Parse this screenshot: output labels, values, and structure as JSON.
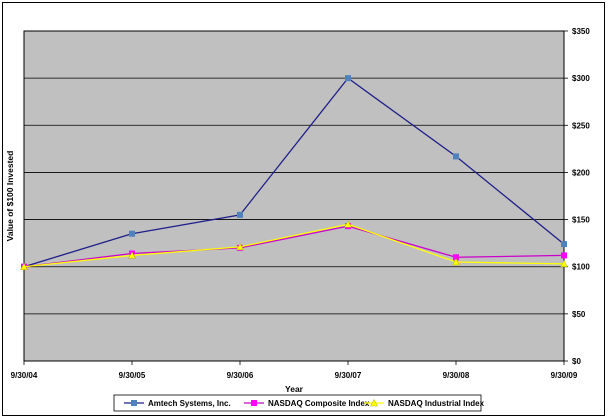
{
  "chart_data": {
    "type": "line",
    "title": "",
    "xlabel": "Year",
    "ylabel": "Value of $100 Invested",
    "categories": [
      "9/30/04",
      "9/30/05",
      "9/30/06",
      "9/30/07",
      "9/30/08",
      "9/30/09"
    ],
    "y_tick_labels": [
      "$0",
      "$50",
      "$100",
      "$150",
      "$200",
      "$250",
      "$300",
      "$350"
    ],
    "ylim": [
      0,
      350
    ],
    "y_axis_side": "right",
    "grid": true,
    "plot_background": "#c0c0c0",
    "legend_position": "bottom",
    "series": [
      {
        "name": "Amtech Systems, Inc.",
        "values": [
          100,
          135,
          155,
          300,
          217,
          124
        ],
        "color": "#1f1f8a",
        "marker": "square",
        "marker_color": "#4f81bd"
      },
      {
        "name": "NASDAQ Composite Index",
        "values": [
          100,
          114,
          120,
          143,
          110,
          112
        ],
        "color": "#cc00cc",
        "marker": "square",
        "marker_color": "#ff00ff"
      },
      {
        "name": "NASDAQ Industrial Index",
        "values": [
          100,
          112,
          121,
          145,
          105,
          103
        ],
        "color": "#ffff00",
        "marker": "triangle",
        "marker_color": "#ffff00"
      }
    ]
  }
}
